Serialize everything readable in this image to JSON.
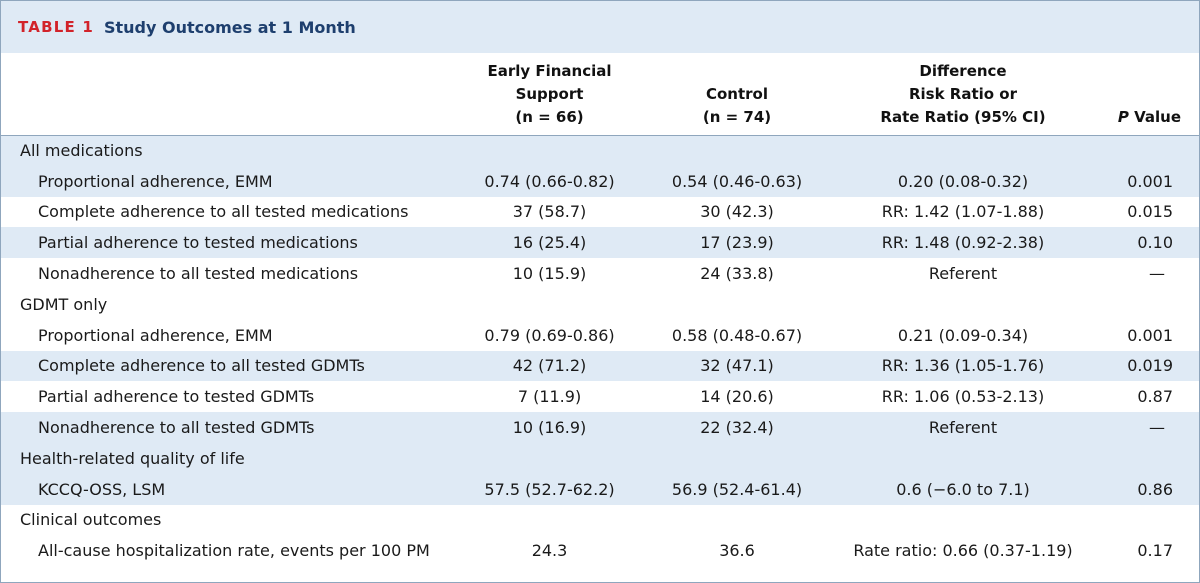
{
  "table": {
    "label": "TABLE 1",
    "title": "Study Outcomes at 1 Month",
    "headers": {
      "col1": [
        "Early Financial",
        "Support",
        "(n = 66)"
      ],
      "col2": [
        "Control",
        "(n = 74)"
      ],
      "col3": [
        "Difference",
        "Risk Ratio or",
        "Rate Ratio (95% CI)"
      ],
      "col4_italic": "P",
      "col4_rest": " Value"
    },
    "sections": [
      {
        "title": "All medications",
        "rows": [
          {
            "label": "Proportional adherence, EMM",
            "efs": "0.74 (0.66-0.82)",
            "control": "0.54 (0.46-0.63)",
            "diff": "0.20 (0.08-0.32)",
            "p": "0.001"
          },
          {
            "label": "Complete adherence to all tested medications",
            "efs": "37 (58.7)",
            "control": "30 (42.3)",
            "diff": "RR: 1.42 (1.07-1.88)",
            "p": "0.015"
          },
          {
            "label": "Partial adherence to tested medications",
            "efs": "16 (25.4)",
            "control": "17 (23.9)",
            "diff": "RR: 1.48 (0.92-2.38)",
            "p": "0.10"
          },
          {
            "label": "Nonadherence to all tested medications",
            "efs": "10 (15.9)",
            "control": "24 (33.8)",
            "diff": "Referent",
            "p": "—"
          }
        ]
      },
      {
        "title": "GDMT only",
        "rows": [
          {
            "label": "Proportional adherence, EMM",
            "efs": "0.79 (0.69-0.86)",
            "control": "0.58 (0.48-0.67)",
            "diff": "0.21 (0.09-0.34)",
            "p": "0.001"
          },
          {
            "label": "Complete adherence to all tested GDMTs",
            "efs": "42 (71.2)",
            "control": "32 (47.1)",
            "diff": "RR: 1.36 (1.05-1.76)",
            "p": "0.019"
          },
          {
            "label": "Partial adherence to tested GDMTs",
            "efs": "7 (11.9)",
            "control": "14 (20.6)",
            "diff": "RR: 1.06 (0.53-2.13)",
            "p": "0.87"
          },
          {
            "label": "Nonadherence to all tested GDMTs",
            "efs": "10 (16.9)",
            "control": "22 (32.4)",
            "diff": "Referent",
            "p": "—"
          }
        ]
      },
      {
        "title": "Health-related quality of life",
        "rows": [
          {
            "label": "KCCQ-OSS, LSM",
            "efs": "57.5 (52.7-62.2)",
            "control": "56.9 (52.4-61.4)",
            "diff": "0.6 (−6.0 to 7.1)",
            "p": "0.86"
          }
        ]
      },
      {
        "title": "Clinical outcomes",
        "rows": [
          {
            "label": "All-cause hospitalization rate, events per 100 PM",
            "efs": "24.3",
            "control": "36.6",
            "diff": "Rate ratio: 0.66 (0.37-1.19)",
            "p": "0.17"
          }
        ]
      }
    ]
  }
}
